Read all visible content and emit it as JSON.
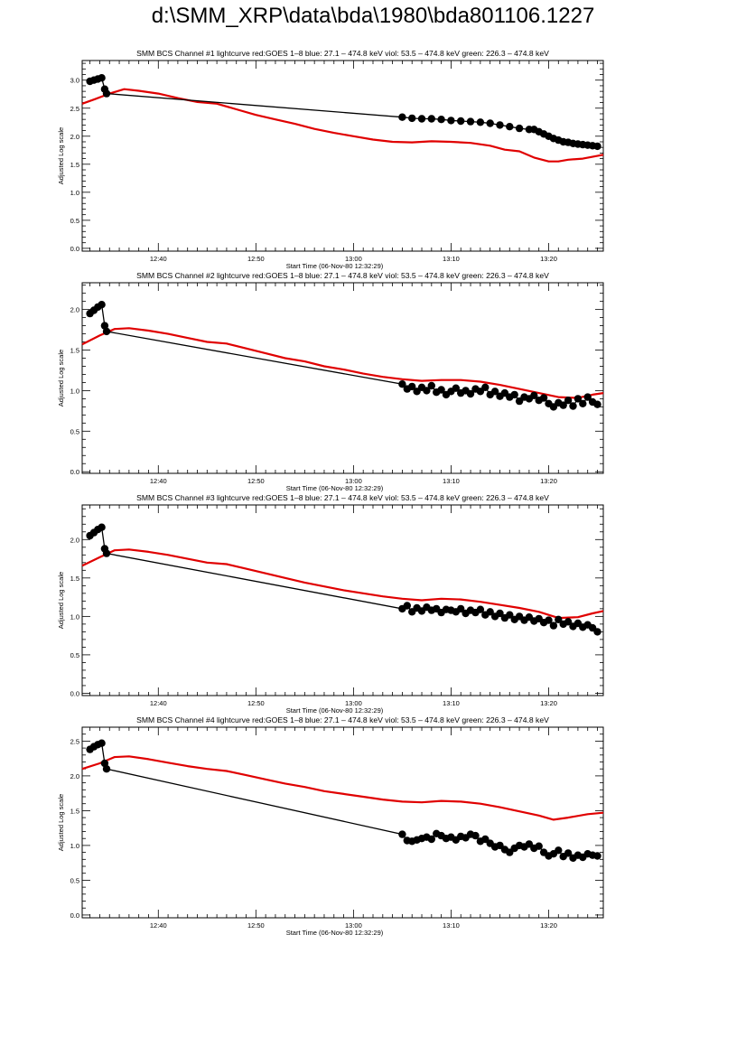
{
  "page_title": "d:\\SMM_XRP\\data\\bda\\1980\\bda801106.1227",
  "colors": {
    "goes": "#e00000",
    "bcs": "#000000",
    "axis": "#000000"
  },
  "chart_data": [
    {
      "type": "line",
      "title": "SMM BCS Channel #1 lightcurve  red:GOES 1–8  blue: 27.1 – 474.8 keV  viol: 53.5 – 474.8 keV  green: 226.3 – 474.8 keV",
      "xlabel": "Start Time (06-Nov-80 12:32:29)",
      "ylabel": "Adjusted Log scale",
      "xlim_min": [
        32.2,
        85.6
      ],
      "ylim": [
        -0.05,
        3.35
      ],
      "yticks": [
        0.0,
        0.5,
        1.0,
        1.5,
        2.0,
        2.5,
        3.0
      ],
      "ytick_labels": [
        "0.0",
        "0.5",
        "1.0",
        "1.5",
        "2.0",
        "2.5",
        "3.0"
      ],
      "xticks": [
        40,
        50,
        60,
        70,
        80
      ],
      "xtick_labels": [
        "12:40",
        "12:50",
        "13:00",
        "13:10",
        "13:20"
      ],
      "series": [
        {
          "name": "red:GOES 1–8",
          "style": "line",
          "color": "#e00000",
          "x": [
            32.2,
            33.5,
            35.0,
            36.5,
            38.0,
            40.0,
            42.0,
            44.0,
            46.0,
            48.0,
            50.0,
            52.0,
            54.0,
            56.0,
            58.0,
            60.0,
            62.0,
            64.0,
            66.0,
            68.0,
            70.0,
            72.0,
            74.0,
            75.5,
            77.0,
            78.5,
            80.0,
            81.0,
            82.0,
            83.5,
            85.6
          ],
          "y": [
            2.58,
            2.66,
            2.76,
            2.84,
            2.81,
            2.76,
            2.68,
            2.61,
            2.58,
            2.48,
            2.38,
            2.3,
            2.22,
            2.13,
            2.06,
            2.0,
            1.94,
            1.9,
            1.89,
            1.91,
            1.9,
            1.88,
            1.83,
            1.76,
            1.73,
            1.62,
            1.55,
            1.55,
            1.58,
            1.6,
            1.67
          ]
        },
        {
          "name": "BCS",
          "style": "line-markers",
          "color": "#000000",
          "x": [
            33.0,
            33.4,
            33.8,
            34.2,
            34.5,
            34.7,
            65.0,
            66.0,
            67.0,
            68.0,
            69.0,
            70.0,
            71.0,
            72.0,
            73.0,
            74.0,
            75.0,
            76.0,
            77.0,
            78.0,
            78.5,
            79.0,
            79.5,
            80.0,
            80.5,
            81.0,
            81.5,
            82.0,
            82.5,
            83.0,
            83.5,
            84.0,
            84.5,
            85.0
          ],
          "y": [
            2.98,
            3.0,
            3.02,
            3.04,
            2.84,
            2.76,
            2.34,
            2.32,
            2.31,
            2.31,
            2.3,
            2.28,
            2.27,
            2.26,
            2.25,
            2.23,
            2.2,
            2.17,
            2.14,
            2.12,
            2.12,
            2.08,
            2.04,
            2.0,
            1.96,
            1.93,
            1.9,
            1.89,
            1.87,
            1.86,
            1.85,
            1.84,
            1.83,
            1.82
          ]
        }
      ]
    },
    {
      "type": "line",
      "title": "SMM BCS Channel #2 lightcurve  red:GOES 1–8  blue: 27.1 – 474.8 keV  viol: 53.5 – 474.8 keV  green: 226.3 – 474.8 keV",
      "xlabel": "Start Time (06-Nov-80 12:32:29)",
      "ylabel": "Adjusted Log scale",
      "xlim_min": [
        32.2,
        85.6
      ],
      "ylim": [
        -0.02,
        2.33
      ],
      "yticks": [
        0.0,
        0.5,
        1.0,
        1.5,
        2.0
      ],
      "ytick_labels": [
        "0.0",
        "0.5",
        "1.0",
        "1.5",
        "2.0"
      ],
      "xticks": [
        40,
        50,
        60,
        70,
        80
      ],
      "xtick_labels": [
        "12:40",
        "12:50",
        "13:00",
        "13:10",
        "13:20"
      ],
      "series": [
        {
          "name": "red:GOES 1–8",
          "style": "line",
          "color": "#e00000",
          "x": [
            32.2,
            34.0,
            35.5,
            37.0,
            39.0,
            41.0,
            43.0,
            45.0,
            47.0,
            49.0,
            51.0,
            53.0,
            55.0,
            57.0,
            59.0,
            61.0,
            63.0,
            65.0,
            67.0,
            69.0,
            71.0,
            73.0,
            75.0,
            77.0,
            79.0,
            81.0,
            83.0,
            84.5,
            85.6
          ],
          "y": [
            1.57,
            1.68,
            1.76,
            1.77,
            1.74,
            1.7,
            1.65,
            1.6,
            1.58,
            1.52,
            1.46,
            1.4,
            1.36,
            1.3,
            1.26,
            1.21,
            1.17,
            1.14,
            1.12,
            1.13,
            1.13,
            1.11,
            1.07,
            1.02,
            0.97,
            0.92,
            0.91,
            0.95,
            0.97
          ]
        },
        {
          "name": "BCS",
          "style": "line-markers",
          "color": "#000000",
          "x": [
            33.0,
            33.4,
            33.8,
            34.2,
            34.5,
            34.7,
            65.0,
            65.5,
            66.0,
            66.5,
            67.0,
            67.5,
            68.0,
            68.5,
            69.0,
            69.5,
            70.0,
            70.5,
            71.0,
            71.5,
            72.0,
            72.5,
            73.0,
            73.5,
            74.0,
            74.5,
            75.0,
            75.5,
            76.0,
            76.5,
            77.0,
            77.5,
            78.0,
            78.5,
            79.0,
            79.5,
            80.0,
            80.5,
            81.0,
            81.5,
            82.0,
            82.5,
            83.0,
            83.5,
            84.0,
            84.5,
            85.0
          ],
          "y": [
            1.95,
            1.99,
            2.03,
            2.06,
            1.8,
            1.73,
            1.08,
            1.02,
            1.05,
            0.99,
            1.04,
            1.0,
            1.06,
            0.98,
            1.01,
            0.95,
            0.99,
            1.03,
            0.97,
            1.0,
            0.96,
            1.02,
            0.99,
            1.04,
            0.95,
            0.99,
            0.93,
            0.97,
            0.92,
            0.95,
            0.87,
            0.92,
            0.9,
            0.94,
            0.88,
            0.91,
            0.84,
            0.8,
            0.85,
            0.82,
            0.88,
            0.81,
            0.9,
            0.84,
            0.92,
            0.86,
            0.83
          ]
        }
      ]
    },
    {
      "type": "line",
      "title": "SMM BCS Channel #3 lightcurve  red:GOES 1–8  blue: 27.1 – 474.8 keV  viol: 53.5 – 474.8 keV  green: 226.3 – 474.8 keV",
      "xlabel": "Start Time (06-Nov-80 12:32:29)",
      "ylabel": "Adjusted Log scale",
      "xlim_min": [
        32.2,
        85.6
      ],
      "ylim": [
        -0.03,
        2.45
      ],
      "yticks": [
        0.0,
        0.5,
        1.0,
        1.5,
        2.0
      ],
      "ytick_labels": [
        "0.0",
        "0.5",
        "1.0",
        "1.5",
        "2.0"
      ],
      "xticks": [
        40,
        50,
        60,
        70,
        80
      ],
      "xtick_labels": [
        "12:40",
        "12:50",
        "13:00",
        "13:10",
        "13:20"
      ],
      "series": [
        {
          "name": "red:GOES 1–8",
          "style": "line",
          "color": "#e00000",
          "x": [
            32.2,
            34.0,
            35.5,
            37.0,
            39.0,
            41.0,
            43.0,
            45.0,
            47.0,
            49.0,
            51.0,
            53.0,
            55.0,
            57.0,
            59.0,
            61.0,
            63.0,
            65.0,
            67.0,
            69.0,
            71.0,
            73.0,
            75.0,
            77.0,
            79.0,
            81.0,
            83.0,
            84.5,
            85.6
          ],
          "y": [
            1.66,
            1.77,
            1.86,
            1.87,
            1.84,
            1.8,
            1.75,
            1.7,
            1.68,
            1.62,
            1.56,
            1.5,
            1.44,
            1.39,
            1.34,
            1.3,
            1.26,
            1.23,
            1.21,
            1.23,
            1.22,
            1.19,
            1.15,
            1.11,
            1.06,
            0.98,
            0.99,
            1.04,
            1.07
          ]
        },
        {
          "name": "BCS",
          "style": "line-markers",
          "color": "#000000",
          "x": [
            33.0,
            33.4,
            33.8,
            34.2,
            34.5,
            34.7,
            65.0,
            65.5,
            66.0,
            66.5,
            67.0,
            67.5,
            68.0,
            68.5,
            69.0,
            69.5,
            70.0,
            70.5,
            71.0,
            71.5,
            72.0,
            72.5,
            73.0,
            73.5,
            74.0,
            74.5,
            75.0,
            75.5,
            76.0,
            76.5,
            77.0,
            77.5,
            78.0,
            78.5,
            79.0,
            79.5,
            80.0,
            80.5,
            81.0,
            81.5,
            82.0,
            82.5,
            83.0,
            83.5,
            84.0,
            84.5,
            85.0
          ],
          "y": [
            2.05,
            2.09,
            2.13,
            2.16,
            1.88,
            1.82,
            1.1,
            1.14,
            1.06,
            1.11,
            1.07,
            1.12,
            1.08,
            1.1,
            1.05,
            1.09,
            1.08,
            1.06,
            1.1,
            1.04,
            1.08,
            1.05,
            1.09,
            1.02,
            1.06,
            1.0,
            1.04,
            0.98,
            1.02,
            0.96,
            1.0,
            0.95,
            0.99,
            0.94,
            0.97,
            0.92,
            0.95,
            0.88,
            0.96,
            0.9,
            0.93,
            0.87,
            0.91,
            0.86,
            0.89,
            0.85,
            0.8
          ]
        }
      ]
    },
    {
      "type": "line",
      "title": "SMM BCS Channel #4 lightcurve  red:GOES 1–8  blue: 27.1 – 474.8 keV  viol: 53.5 – 474.8 keV  green: 226.3 – 474.8 keV",
      "xlabel": "Start Time (06-Nov-80 12:32:29)",
      "ylabel": "Adjusted Log scale",
      "xlim_min": [
        32.2,
        85.6
      ],
      "ylim": [
        -0.04,
        2.7
      ],
      "yticks": [
        0.0,
        0.5,
        1.0,
        1.5,
        2.0,
        2.5
      ],
      "ytick_labels": [
        "0.0",
        "0.5",
        "1.0",
        "1.5",
        "2.0",
        "2.5"
      ],
      "xticks": [
        40,
        50,
        60,
        70,
        80
      ],
      "xtick_labels": [
        "12:40",
        "12:50",
        "13:00",
        "13:10",
        "13:20"
      ],
      "series": [
        {
          "name": "red:GOES 1–8",
          "style": "line",
          "color": "#e00000",
          "x": [
            32.2,
            34.0,
            35.5,
            37.0,
            39.0,
            41.0,
            43.0,
            45.0,
            47.0,
            49.0,
            51.0,
            53.0,
            55.0,
            57.0,
            59.0,
            61.0,
            63.0,
            65.0,
            67.0,
            69.0,
            71.0,
            73.0,
            75.0,
            77.0,
            79.0,
            80.5,
            82.0,
            84.0,
            85.6
          ],
          "y": [
            2.1,
            2.18,
            2.27,
            2.28,
            2.24,
            2.19,
            2.14,
            2.1,
            2.07,
            2.01,
            1.95,
            1.89,
            1.84,
            1.78,
            1.74,
            1.7,
            1.66,
            1.63,
            1.62,
            1.64,
            1.63,
            1.6,
            1.55,
            1.49,
            1.43,
            1.37,
            1.4,
            1.45,
            1.47
          ]
        },
        {
          "name": "BCS",
          "style": "line-markers",
          "color": "#000000",
          "x": [
            33.0,
            33.4,
            33.8,
            34.2,
            34.5,
            34.7,
            65.0,
            65.5,
            66.0,
            66.5,
            67.0,
            67.5,
            68.0,
            68.5,
            69.0,
            69.5,
            70.0,
            70.5,
            71.0,
            71.5,
            72.0,
            72.5,
            73.0,
            73.5,
            74.0,
            74.5,
            75.0,
            75.5,
            76.0,
            76.5,
            77.0,
            77.5,
            78.0,
            78.5,
            79.0,
            79.5,
            80.0,
            80.5,
            81.0,
            81.5,
            82.0,
            82.5,
            83.0,
            83.5,
            84.0,
            84.5,
            85.0
          ],
          "y": [
            2.38,
            2.42,
            2.45,
            2.47,
            2.18,
            2.1,
            1.16,
            1.07,
            1.06,
            1.08,
            1.1,
            1.12,
            1.09,
            1.17,
            1.14,
            1.1,
            1.12,
            1.08,
            1.13,
            1.11,
            1.16,
            1.14,
            1.06,
            1.09,
            1.03,
            0.98,
            1.0,
            0.94,
            0.9,
            0.96,
            1.0,
            0.98,
            1.02,
            0.96,
            0.99,
            0.9,
            0.85,
            0.88,
            0.93,
            0.84,
            0.89,
            0.82,
            0.86,
            0.83,
            0.88,
            0.86,
            0.85
          ]
        }
      ]
    }
  ]
}
